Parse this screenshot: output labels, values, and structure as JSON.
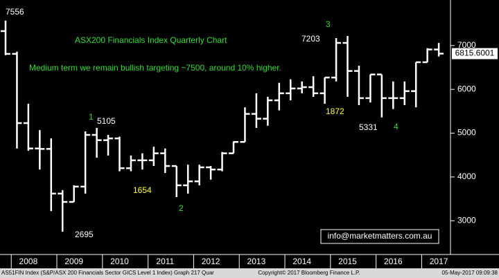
{
  "chart_data": {
    "type": "ohlc",
    "title": "ASX200 Financials Index Quarterly Chart",
    "subtitle": "Medium term we remain bullish targeting ~7500, around 10% higher.",
    "categories": [
      null,
      null,
      "2008",
      null,
      null,
      null,
      "2009",
      null,
      null,
      null,
      "2010",
      null,
      null,
      null,
      "2011",
      null,
      null,
      null,
      "2012",
      null,
      null,
      null,
      "2013",
      null,
      null,
      null,
      "2014",
      null,
      null,
      null,
      "2015",
      null,
      null,
      null,
      "2016",
      null,
      null,
      null,
      "2017"
    ],
    "series": [
      {
        "color": "#ffffff",
        "open": [
          7330,
          6810,
          5230,
          4650,
          4640,
          3620,
          3430,
          3780,
          4960,
          4840,
          4880,
          4200,
          4380,
          4380,
          4540,
          4250,
          3810,
          3900,
          4220,
          4170,
          4540,
          4800,
          5440,
          5330,
          5750,
          5910,
          6020,
          6050,
          5910,
          6270,
          7060,
          6420,
          5800,
          6340,
          5800,
          5800,
          5960,
          6620,
          6910
        ],
        "high": [
          7570,
          6860,
          5670,
          5070,
          4880,
          3700,
          3810,
          5040,
          5120,
          4960,
          4920,
          4490,
          4540,
          4690,
          4650,
          4250,
          4280,
          4280,
          4250,
          4570,
          4810,
          5590,
          5910,
          5830,
          6150,
          6230,
          6180,
          6300,
          6270,
          7170,
          7220,
          6540,
          6340,
          6340,
          6180,
          6180,
          6620,
          6940,
          7060
        ],
        "low": [
          6780,
          4650,
          4600,
          4170,
          3220,
          2750,
          3430,
          3620,
          4440,
          4490,
          4130,
          4130,
          4170,
          4250,
          4090,
          3540,
          3620,
          3810,
          3940,
          4130,
          4540,
          4800,
          5120,
          5170,
          5520,
          5750,
          5910,
          5830,
          5670,
          6180,
          5830,
          5640,
          5700,
          5360,
          5550,
          5640,
          5590,
          6620,
          6750
        ],
        "close": [
          6810,
          5230,
          4650,
          4640,
          3620,
          3430,
          3780,
          4960,
          4840,
          4880,
          4200,
          4380,
          4380,
          4540,
          4250,
          3810,
          3900,
          4220,
          4170,
          4540,
          4800,
          5440,
          5330,
          5750,
          5910,
          6020,
          6050,
          5910,
          6270,
          7060,
          6420,
          5800,
          6340,
          5800,
          5800,
          5960,
          6620,
          6910,
          6815.6001
        ]
      }
    ],
    "ylim": [
      2230,
      8040
    ],
    "yticks": [
      3000,
      4000,
      5000,
      6000,
      7000
    ],
    "grid": false,
    "annotations": [
      {
        "text": "7556",
        "color": "#ffffff"
      },
      {
        "text": "5105",
        "color": "#ffffff"
      },
      {
        "text": "1654",
        "color": "#ffff33"
      },
      {
        "text": "2695",
        "color": "#ffffff"
      },
      {
        "text": "7203",
        "color": "#ffffff"
      },
      {
        "text": "1872",
        "color": "#ffff33"
      },
      {
        "text": "5331",
        "color": "#ffffff"
      },
      {
        "text": "1",
        "color": "#33dd33"
      },
      {
        "text": "2",
        "color": "#33dd33"
      },
      {
        "text": "3",
        "color": "#33dd33"
      },
      {
        "text": "4",
        "color": "#33dd33"
      }
    ],
    "contact": "info@marketmatters.com.au",
    "footer": [
      "AS51FIN Index (S&P/ASX 200 Financials Sector GICS Level 1 Index) Graph 217  Quar",
      "Copyright© 2017 Bloomberg Finance L.P.",
      "05-May-2017 09:09:38"
    ]
  }
}
